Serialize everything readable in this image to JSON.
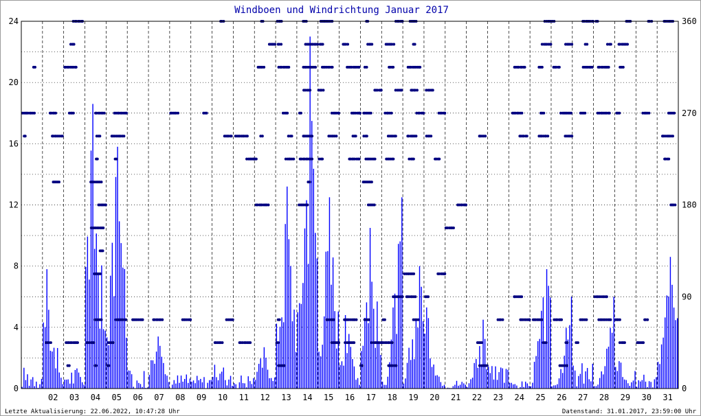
{
  "chart_data": {
    "type": "line",
    "title": "Windboen und Windrichtung Januar 2017",
    "ylim": [
      0,
      24
    ],
    "y2lim": [
      0,
      360
    ],
    "yticks": [
      "0",
      "4",
      "8",
      "12",
      "16",
      "20",
      "24"
    ],
    "y2ticks": [
      "0",
      "90",
      "180",
      "270",
      "360"
    ],
    "x_tick_labels": [
      "02",
      "03",
      "04",
      "05",
      "06",
      "07",
      "08",
      "09",
      "10",
      "11",
      "12",
      "13",
      "14",
      "15",
      "16",
      "17",
      "18",
      "19",
      "20",
      "21",
      "22",
      "23",
      "24",
      "25",
      "26",
      "27",
      "28",
      "29",
      "30",
      "31"
    ],
    "grid": true,
    "series": [
      {
        "kind": "gust_profile",
        "color": "#0000ff",
        "day_peaks": [
          {
            "day": 1,
            "peak": 1.5
          },
          {
            "day": 2,
            "peak": 7.8
          },
          {
            "day": 3,
            "peak": 1.5
          },
          {
            "day": 4,
            "peak": 18.6
          },
          {
            "day": 5,
            "peak": 15.8
          },
          {
            "day": 6,
            "peak": 1.2
          },
          {
            "day": 7,
            "peak": 3.4
          },
          {
            "day": 8,
            "peak": 1.0
          },
          {
            "day": 9,
            "peak": 0.9
          },
          {
            "day": 10,
            "peak": 1.6
          },
          {
            "day": 11,
            "peak": 1.0
          },
          {
            "day": 12,
            "peak": 2.7
          },
          {
            "day": 13,
            "peak": 13.2
          },
          {
            "day": 14,
            "peak": 23.0
          },
          {
            "day": 15,
            "peak": 12.5
          },
          {
            "day": 16,
            "peak": 4.8
          },
          {
            "day": 17,
            "peak": 10.5
          },
          {
            "day": 18,
            "peak": 12.5
          },
          {
            "day": 19,
            "peak": 8.0
          },
          {
            "day": 20,
            "peak": 5.3
          },
          {
            "day": 21,
            "peak": 0.6
          },
          {
            "day": 22,
            "peak": 4.5
          },
          {
            "day": 23,
            "peak": 1.5
          },
          {
            "day": 24,
            "peak": 0.5
          },
          {
            "day": 25,
            "peak": 7.8
          },
          {
            "day": 26,
            "peak": 6.0
          },
          {
            "day": 27,
            "peak": 1.8
          },
          {
            "day": 28,
            "peak": 6.0
          },
          {
            "day": 29,
            "peak": 1.8
          },
          {
            "day": 30,
            "peak": 1.0
          },
          {
            "day": 31,
            "peak": 8.6
          }
        ]
      },
      {
        "kind": "direction_scatter",
        "color": "#000080",
        "levels_deg": [
          0,
          22.5,
          45,
          67.5,
          90,
          112.5,
          135,
          157.5,
          180,
          202.5,
          225,
          247.5,
          270,
          292.5,
          315,
          337.5,
          360
        ],
        "day_dominant_deg": [
          {
            "day": 1,
            "deg": [
              270,
              247.5,
              315
            ]
          },
          {
            "day": 2,
            "deg": [
              270,
              247.5,
              202.5,
              45
            ]
          },
          {
            "day": 3,
            "deg": [
              270,
              315,
              337.5,
              360,
              45,
              22.5
            ]
          },
          {
            "day": 4,
            "deg": [
              270,
              247.5,
              225,
              202.5,
              180,
              157.5,
              135,
              112.5,
              45,
              67.5,
              22.5
            ]
          },
          {
            "day": 5,
            "deg": [
              67.5,
              45,
              247.5,
              225,
              270,
              22.5
            ]
          },
          {
            "day": 6,
            "deg": [
              67.5
            ]
          },
          {
            "day": 7,
            "deg": [
              67.5
            ]
          },
          {
            "day": 8,
            "deg": [
              67.5,
              270
            ]
          },
          {
            "day": 9,
            "deg": [
              270
            ]
          },
          {
            "day": 10,
            "deg": [
              67.5,
              45,
              360,
              247.5
            ]
          },
          {
            "day": 11,
            "deg": [
              247.5,
              225,
              45
            ]
          },
          {
            "day": 12,
            "deg": [
              247.5,
              225,
              180,
              360,
              337.5,
              315
            ]
          },
          {
            "day": 13,
            "deg": [
              225,
              247.5,
              270,
              315,
              337.5,
              360,
              45,
              67.5,
              22.5
            ]
          },
          {
            "day": 14,
            "deg": [
              225,
              247.5,
              270,
              292.5,
              315,
              337.5,
              360,
              202.5,
              180
            ]
          },
          {
            "day": 15,
            "deg": [
              225,
              247.5,
              270,
              292.5,
              315,
              337.5,
              360,
              67.5,
              45
            ]
          },
          {
            "day": 16,
            "deg": [
              247.5,
              225,
              270,
              315,
              337.5,
              45,
              67.5
            ]
          },
          {
            "day": 17,
            "deg": [
              45,
              67.5,
              22.5,
              247.5,
              225,
              270,
              292.5,
              315,
              337.5,
              360,
              202.5,
              180
            ]
          },
          {
            "day": 18,
            "deg": [
              225,
              247.5,
              270,
              292.5,
              315,
              337.5,
              360,
              45,
              67.5,
              22.5,
              90
            ]
          },
          {
            "day": 19,
            "deg": [
              225,
              247.5,
              270,
              292.5,
              315,
              337.5,
              360,
              90,
              112.5,
              67.5
            ]
          },
          {
            "day": 20,
            "deg": [
              90,
              112.5,
              270,
              292.5,
              247.5,
              225
            ]
          },
          {
            "day": 21,
            "deg": [
              157.5,
              180
            ]
          },
          {
            "day": 22,
            "deg": [
              247.5,
              45,
              22.5
            ]
          },
          {
            "day": 23,
            "deg": [
              67.5
            ]
          },
          {
            "day": 24,
            "deg": [
              67.5,
              90,
              247.5,
              270,
              315
            ]
          },
          {
            "day": 25,
            "deg": [
              45,
              67.5,
              247.5,
              270,
              315,
              337.5,
              360
            ]
          },
          {
            "day": 26,
            "deg": [
              45,
              67.5,
              22.5,
              247.5,
              270,
              315,
              337.5,
              360
            ]
          },
          {
            "day": 27,
            "deg": [
              45,
              67.5,
              270,
              315,
              337.5,
              360
            ]
          },
          {
            "day": 28,
            "deg": [
              67.5,
              90,
              270,
              315,
              337.5,
              360
            ]
          },
          {
            "day": 29,
            "deg": [
              67.5,
              45,
              270,
              315,
              337.5,
              360
            ]
          },
          {
            "day": 30,
            "deg": [
              67.5,
              45,
              270,
              360
            ]
          },
          {
            "day": 31,
            "deg": [
              247.5,
              270,
              225,
              360,
              180
            ]
          }
        ]
      }
    ]
  },
  "footer": {
    "left": "Letzte Aktualisierung: 22.06.2022, 10:47:28 Uhr",
    "right": "Datenstand: 31.01.2017, 23:59:00 Uhr"
  },
  "colors": {
    "gust": "#0000ff",
    "direction": "#000080",
    "title": "#0000aa",
    "grid": "#000000"
  }
}
